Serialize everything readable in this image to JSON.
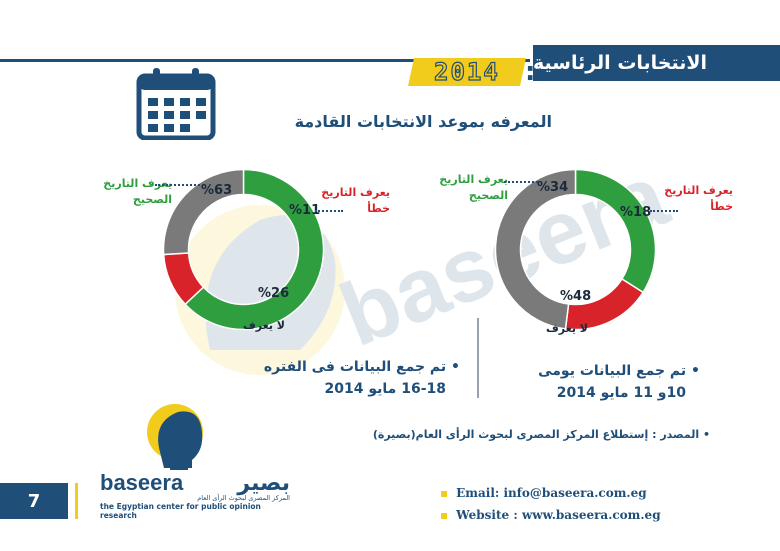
{
  "header": {
    "title": "الانتخابات الرئاسية",
    "year": "2014",
    "year_colon": ":",
    "subtitle": "المعرفه بموعد الانتخابات القادمة"
  },
  "colors": {
    "navy": "#1f4e79",
    "yellow": "#f2cc1c",
    "green": "#2e9e3e",
    "red": "#d9232a",
    "gray": "#7a7a7a"
  },
  "chart_data": [
    {
      "type": "pie",
      "variant": "donut",
      "slices": [
        {
          "label": "يعرف التاريخ الصحيح",
          "value": 34,
          "value_label": "%34",
          "color": "#2e9e3e"
        },
        {
          "label": "يعرف التاريخ خطأ",
          "value": 18,
          "value_label": "%18",
          "color": "#d9232a"
        },
        {
          "label": "لا يعرف",
          "value": 48,
          "value_label": "%48",
          "color": "#7a7a7a"
        }
      ],
      "correct_label_line1": "يعرف التاريخ",
      "correct_label_line2": "الصحيح",
      "wrong_label_line1": "يعرف التاريخ",
      "wrong_label_line2": "خطأ",
      "unknown_label": "لا يعرف"
    },
    {
      "type": "pie",
      "variant": "donut",
      "slices": [
        {
          "label": "يعرف التاريخ الصحيح",
          "value": 63,
          "value_label": "%63",
          "color": "#2e9e3e"
        },
        {
          "label": "يعرف التاريخ خطأ",
          "value": 11,
          "value_label": "%11",
          "color": "#d9232a"
        },
        {
          "label": "لا يعرف",
          "value": 26,
          "value_label": "%26",
          "color": "#7a7a7a"
        }
      ],
      "correct_label_line1": "يعرف التاريخ",
      "correct_label_line2": "الصحيح",
      "wrong_label_line1": "يعرف التاريخ",
      "wrong_label_line2": "خطأ",
      "unknown_label": "لا يعرف"
    }
  ],
  "notes": {
    "left_line1": "تم جمع البيانات فى الفتره",
    "left_line2": "16-18 مايو 2014",
    "right_line1": "تم جمع البيانات يومى",
    "right_line2": "10و 11 مايو 2014",
    "source": "المصدر  :  إستطلاع المركز المصرى لبحوث الرأى العام(بصيرة)"
  },
  "footer": {
    "page_number": "7",
    "email": "Email: info@baseera.com.eg",
    "website": "Website : www.baseera.com.eg",
    "brand_en": "baseera",
    "brand_ar": "بصير",
    "brand_sub_ar": "المركز المصرى لبحوث الرأى العام",
    "brand_sub_en": "the Egyptian center for public opinion research"
  }
}
